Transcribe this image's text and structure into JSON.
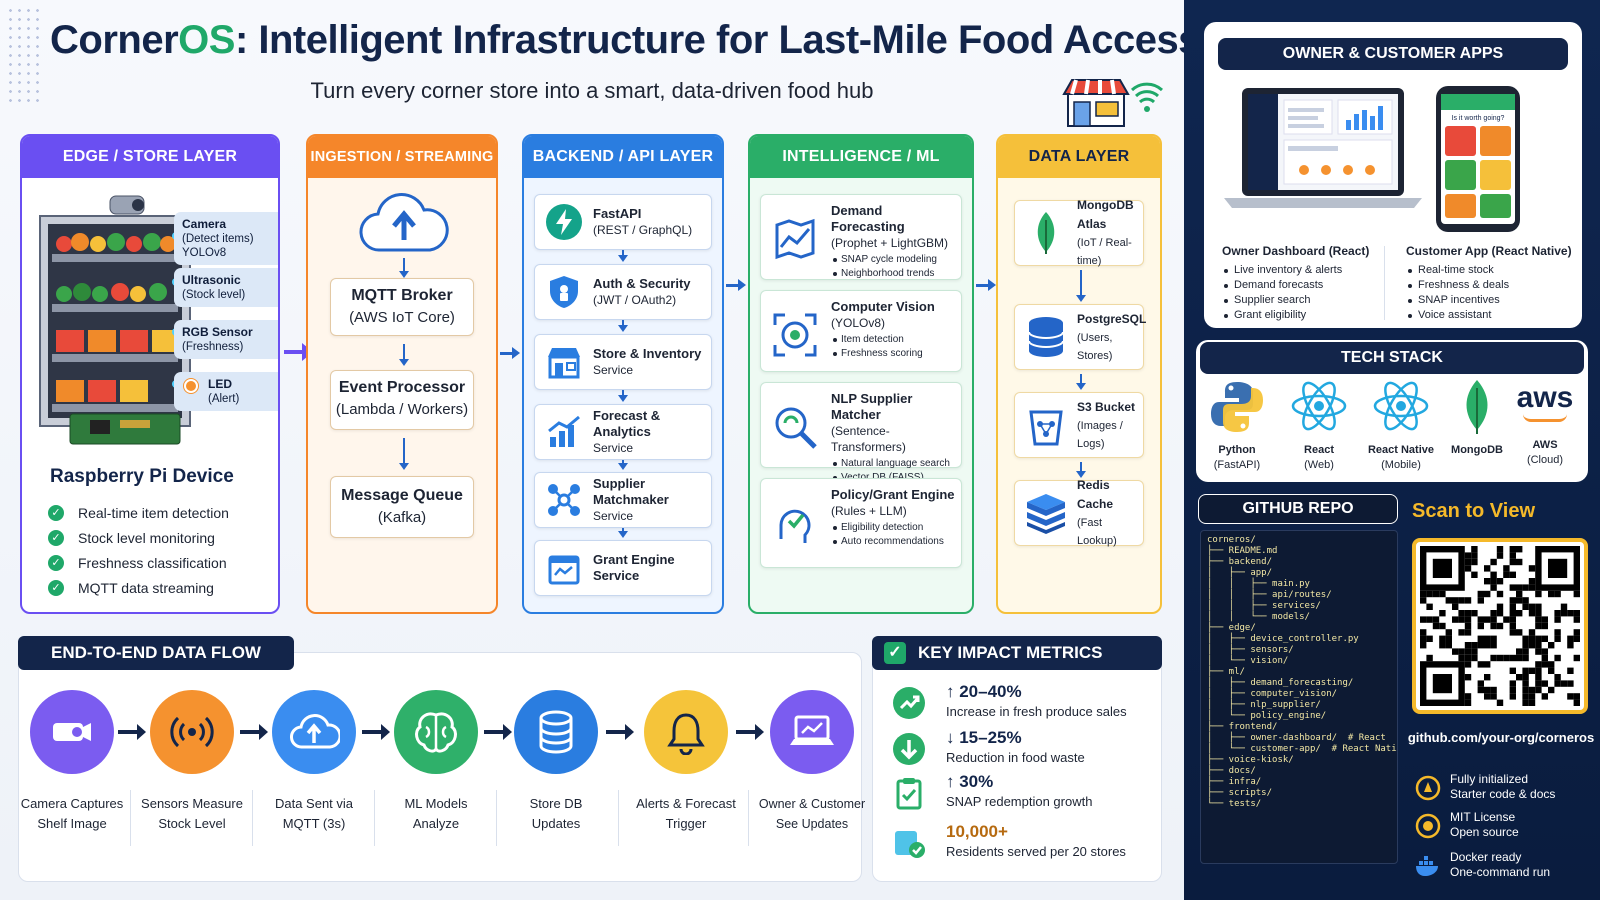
{
  "header": {
    "title_a": "Corner",
    "title_b": "OS",
    "title_c": ": Intelligent Infrastructure for Last-Mile Food Access",
    "subtitle": "Turn every corner store into a smart, data-driven food hub"
  },
  "colors": {
    "edge": "#6a4ff2",
    "ingestion": "#f5862a",
    "backend": "#2a7de0",
    "ml": "#2aae68",
    "data": "#f5c03a",
    "navy": "#13254a",
    "green": "#1fa869"
  },
  "edge": {
    "title": "EDGE / STORE LAYER",
    "sensors": [
      {
        "name": "Camera",
        "lines": [
          "(Detect items)",
          "YOLOv8"
        ]
      },
      {
        "name": "Ultrasonic",
        "lines": [
          "(Stock level)"
        ]
      },
      {
        "name": "RGB Sensor",
        "lines": [
          "(Freshness)"
        ]
      },
      {
        "name": "LED",
        "lines": [
          "(Alert)"
        ]
      }
    ],
    "device_title": "Raspberry Pi Device",
    "features": [
      "Real-time item detection",
      "Stock level monitoring",
      "Freshness classification",
      "MQTT data streaming"
    ]
  },
  "ingestion": {
    "title": "INGESTION / STREAMING",
    "boxes": [
      {
        "name": "MQTT Broker",
        "sub": "(AWS IoT Core)"
      },
      {
        "name": "Event Processor",
        "sub": "(Lambda / Workers)"
      },
      {
        "name": "Message Queue",
        "sub": "(Kafka)"
      }
    ]
  },
  "backend": {
    "title": "BACKEND / API LAYER",
    "services": [
      {
        "name": "FastAPI",
        "sub": "(REST / GraphQL)",
        "icon": "lightning-icon"
      },
      {
        "name": "Auth & Security",
        "sub": "(JWT / OAuth2)",
        "icon": "shield-icon"
      },
      {
        "name": "Store & Inventory",
        "sub": "Service",
        "icon": "store-icon"
      },
      {
        "name": "Forecast & Analytics",
        "sub": "Service",
        "icon": "chart-icon"
      },
      {
        "name": "Supplier Matchmaker",
        "sub": "Service",
        "icon": "network-icon"
      },
      {
        "name": "Grant Engine Service",
        "sub": "",
        "icon": "grant-icon"
      }
    ]
  },
  "ml": {
    "title": "INTELLIGENCE / ML",
    "models": [
      {
        "name": "Demand Forecasting",
        "sub": "(Prophet + LightGBM)",
        "bullets": [
          "SNAP cycle modeling",
          "Neighborhood trends"
        ]
      },
      {
        "name": "Computer Vision",
        "sub": "(YOLOv8)",
        "bullets": [
          "Item detection",
          "Freshness scoring"
        ]
      },
      {
        "name": "NLP Supplier Matcher",
        "sub": "(Sentence-Transformers)",
        "bullets": [
          "Natural language search",
          "Vector DB (FAISS)"
        ]
      },
      {
        "name": "Policy/Grant Engine",
        "sub": "(Rules + LLM)",
        "bullets": [
          "Eligibility detection",
          "Auto recommendations"
        ]
      }
    ]
  },
  "data_layer": {
    "title": "DATA LAYER",
    "stores": [
      {
        "name": "MongoDB Atlas",
        "sub": "(IoT / Real-time)"
      },
      {
        "name": "PostgreSQL",
        "sub": "(Users, Stores)"
      },
      {
        "name": "S3 Bucket",
        "sub": "(Images / Logs)"
      },
      {
        "name": "Redis Cache",
        "sub": "(Fast Lookup)"
      }
    ]
  },
  "flow": {
    "title": "END-TO-END DATA FLOW",
    "steps": [
      {
        "l1": "Camera Captures",
        "l2": "Shelf Image",
        "color": "#7b5cf0"
      },
      {
        "l1": "Sensors Measure",
        "l2": "Stock Level",
        "color": "#f5922f"
      },
      {
        "l1": "Data Sent via",
        "l2": "MQTT (3s)",
        "color": "#3a8df0"
      },
      {
        "l1": "ML Models",
        "l2": "Analyze",
        "color": "#2fb06a"
      },
      {
        "l1": "Store DB",
        "l2": "Updates",
        "color": "#2a7de0"
      },
      {
        "l1": "Alerts & Forecast",
        "l2": "Trigger",
        "color": "#f5c43a"
      },
      {
        "l1": "Owner & Customer",
        "l2": "See Updates",
        "color": "#7b5cf0"
      }
    ]
  },
  "metrics": {
    "title": "KEY IMPACT METRICS",
    "items": [
      {
        "value": "↑ 20–40%",
        "desc": "Increase in fresh produce sales"
      },
      {
        "value": "↓ 15–25%",
        "desc": "Reduction in food waste"
      },
      {
        "value": "↑ 30%",
        "desc": "SNAP redemption growth"
      },
      {
        "value": "10,000+",
        "desc": "Residents served per 20 stores"
      }
    ]
  },
  "apps": {
    "title": "OWNER & CUSTOMER APPS",
    "phone_banner": "Is it worth going?",
    "owner": {
      "title": "Owner Dashboard (React)",
      "bullets": [
        "Live inventory & alerts",
        "Demand forecasts",
        "Supplier search",
        "Grant eligibility"
      ]
    },
    "customer": {
      "title": "Customer App (React Native)",
      "bullets": [
        "Real-time stock",
        "Freshness & deals",
        "SNAP incentives",
        "Voice assistant"
      ]
    }
  },
  "tech_stack": {
    "title": "TECH STACK",
    "items": [
      {
        "name": "Python",
        "sub": "(FastAPI)",
        "icon": "python-icon"
      },
      {
        "name": "React",
        "sub": "(Web)",
        "icon": "react-icon"
      },
      {
        "name": "React Native",
        "sub": "(Mobile)",
        "icon": "react-native-icon"
      },
      {
        "name": "MongoDB",
        "sub": "",
        "icon": "mongodb-leaf-icon"
      },
      {
        "name": "AWS",
        "sub": "(Cloud)",
        "icon": "aws-icon"
      }
    ]
  },
  "github": {
    "title": "GITHUB REPO",
    "scan": "Scan to View",
    "url": "github.com/your-org/corneros",
    "tree": [
      "corneros/",
      "├── README.md",
      "├── backend/",
      "│   ├── app/",
      "│   │   ├── main.py",
      "│   │   ├── api/routes/",
      "│   │   ├── services/",
      "│   │   └── models/",
      "├── edge/",
      "│   ├── device_controller.py",
      "│   ├── sensors/",
      "│   └── vision/",
      "├── ml/",
      "│   ├── demand_forecasting/",
      "│   ├── computer_vision/",
      "│   ├── nlp_supplier/",
      "│   └── policy_engine/",
      "├── frontend/",
      "│   ├── owner-dashboard/  # React",
      "│   └── customer-app/  # React Native",
      "├── voice-kiosk/",
      "├── docs/",
      "├── infra/",
      "├── scripts/",
      "└── tests/"
    ],
    "features": [
      {
        "l1": "Fully initialized",
        "l2": "Starter code & docs"
      },
      {
        "l1": "MIT License",
        "l2": "Open source"
      },
      {
        "l1": "Docker ready",
        "l2": "One-command run"
      }
    ]
  }
}
